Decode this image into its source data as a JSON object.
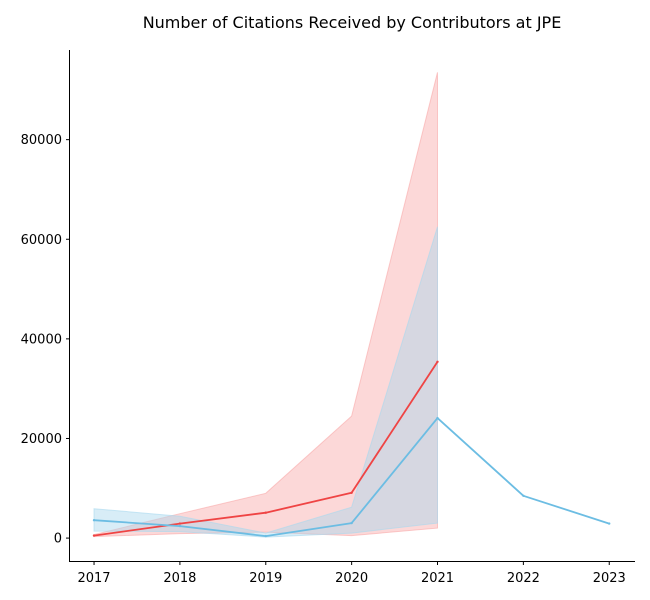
{
  "chart_data": {
    "type": "line",
    "title": "Number of Citations Received by Contributors at JPE",
    "xlabel": "",
    "ylabel": "",
    "x": [
      2017,
      2018,
      2019,
      2020,
      2021,
      2022,
      2023
    ],
    "x_tick_labels": [
      "2017",
      "2018",
      "2019",
      "2020",
      "2021",
      "2022",
      "2023"
    ],
    "y_ticks": [
      0,
      20000,
      40000,
      60000,
      80000
    ],
    "y_tick_labels": [
      "0",
      "20000",
      "40000",
      "60000",
      "80000"
    ],
    "xlim": [
      2016.72,
      2023.3
    ],
    "ylim": [
      -4600,
      98000
    ],
    "grid": false,
    "legend": "none",
    "series": [
      {
        "color": "#ef4444",
        "band_color": "#f9a8a8",
        "x": [
          2017,
          2018,
          2019,
          2020,
          2021
        ],
        "values": [
          500,
          2900,
          5100,
          9100,
          35400
        ],
        "band_lower": [
          300,
          900,
          1200,
          500,
          2000
        ],
        "band_upper": [
          700,
          4900,
          9000,
          24500,
          93500
        ]
      },
      {
        "color": "#6cbde3",
        "band_color": "#a9d8ee",
        "x": [
          2017,
          2018,
          2019,
          2020,
          2021,
          2022,
          2023
        ],
        "values": [
          3600,
          2400,
          400,
          3000,
          24100,
          8500,
          2900
        ],
        "band_lower": [
          1400,
          1300,
          200,
          1000,
          3000,
          null,
          null
        ],
        "band_upper": [
          5900,
          4400,
          1000,
          6200,
          62500,
          null,
          null
        ]
      }
    ]
  }
}
